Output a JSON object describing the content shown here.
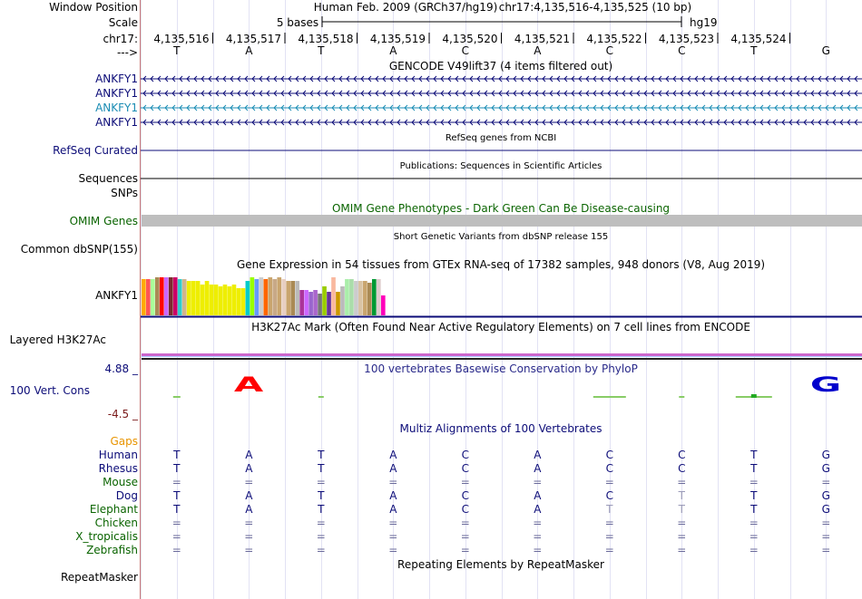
{
  "header": {
    "window_position_label": "Window Position",
    "assembly": "Human Feb. 2009 (GRCh37/hg19)",
    "position": "chr17:4,135,516-4,135,525 (10 bp)",
    "scale_label": "Scale",
    "scale_text": "5 bases",
    "scale_assembly": "hg19",
    "chrom_label": "chr17:",
    "strand_label": "--->",
    "coordinates": [
      "4,135,516",
      "4,135,517",
      "4,135,518",
      "4,135,519",
      "4,135,520",
      "4,135,521",
      "4,135,522",
      "4,135,523",
      "4,135,524"
    ],
    "bases": [
      "T",
      "A",
      "T",
      "A",
      "C",
      "A",
      "C",
      "C",
      "T",
      "G"
    ]
  },
  "gencode": {
    "title": "GENCODE V49lift37 (4 items filtered out)",
    "rows": [
      {
        "name": "ANKFY1",
        "color": "#0c0c78"
      },
      {
        "name": "ANKFY1",
        "color": "#0c0c78"
      },
      {
        "name": "ANKFY1",
        "color": "#1a8cb4"
      },
      {
        "name": "ANKFY1",
        "color": "#0c0c78"
      }
    ]
  },
  "refseq": {
    "title": "RefSeq genes from NCBI",
    "label": "RefSeq Curated",
    "color": "#0c0c78"
  },
  "publications": {
    "title": "Publications: Sequences in Scientific Articles",
    "label": "Sequences"
  },
  "snps": {
    "label": "SNPs"
  },
  "omim": {
    "title": "OMIM Gene Phenotypes - Dark Green Can Be Disease-causing",
    "label": "OMIM Genes",
    "color": "#0a6400",
    "bar_color": "#bebebe"
  },
  "dbsnp": {
    "title": "Short Genetic Variants from dbSNP release 155",
    "label": "Common dbSNP(155)"
  },
  "gtex": {
    "title": "Gene Expression in 54 tissues from GTEx RNA-seq of 17382 samples, 948 donors (V8, Aug 2019)",
    "label": "ANKFY1",
    "colors": [
      "#ffaa00",
      "#ff5555",
      "#aaff99",
      "#aa8a55",
      "#ff0000",
      "#cc66ff",
      "#7b2d2d",
      "#cc0066",
      "#33cccc",
      "#d2b48c",
      "#eeee00",
      "#eeee00",
      "#eeee00",
      "#eeee00",
      "#eeee00",
      "#eeee00",
      "#eeee00",
      "#eeee00",
      "#eeee00",
      "#eeee00",
      "#eeee00",
      "#eeee00",
      "#eeee00",
      "#00cccc",
      "#99ff00",
      "#6699ff",
      "#ccc",
      "#ff6600",
      "#c9a56e",
      "#c8a987",
      "#c9a56e",
      "#e8cfc2",
      "#c9a56e",
      "#aa8a55",
      "#bbbbbb",
      "#aa3399",
      "#cc66ff",
      "#9966cc",
      "#aa66cc",
      "#777777",
      "#99cc00",
      "#663399",
      "#f9b89f",
      "#cc9900",
      "#bbbbbb",
      "#aaeeaa",
      "#aaddaa",
      "#cccccc",
      "#d9c3a3",
      "#c9a56e",
      "#aa8a55",
      "#009933",
      "#ddcccc",
      "#ff00bb"
    ],
    "values": [
      40,
      40,
      40,
      42,
      42,
      42,
      42,
      42,
      40,
      40,
      38,
      38,
      38,
      34,
      38,
      34,
      34,
      32,
      34,
      32,
      34,
      30,
      30,
      38,
      42,
      40,
      42,
      40,
      42,
      40,
      42,
      40,
      38,
      38,
      38,
      28,
      28,
      26,
      28,
      24,
      32,
      26,
      42,
      26,
      32,
      40,
      40,
      38,
      38,
      38,
      36,
      40,
      40,
      22
    ]
  },
  "h3k27ac": {
    "title": "H3K27Ac Mark (Often Found Near Active Regulatory Elements) on 7 cell lines from ENCODE",
    "label": "Layered H3K27Ac"
  },
  "conservation": {
    "title": "100 vertebrates Basewise Conservation by PhyloP",
    "label": "100 Vert. Cons",
    "max": "4.88 _",
    "min": "-4.5 _",
    "big_letters": [
      {
        "base": "A",
        "color": "#ff0000"
      },
      {
        "base": "G",
        "color": "#0000cc"
      }
    ]
  },
  "multiz": {
    "title": "Multiz Alignments of 100 Vertebrates",
    "gaps_label": "Gaps",
    "species": [
      {
        "name": "Human",
        "color": "#0c0c78",
        "seq": [
          "T",
          "A",
          "T",
          "A",
          "C",
          "A",
          "C",
          "C",
          "T",
          "G"
        ]
      },
      {
        "name": "Rhesus",
        "color": "#0c0c78",
        "seq": [
          "T",
          "A",
          "T",
          "A",
          "C",
          "A",
          "C",
          "C",
          "T",
          "G"
        ]
      },
      {
        "name": "Mouse",
        "color": "#0a6400",
        "seq": [
          "=",
          "=",
          "=",
          "=",
          "=",
          "=",
          "=",
          "=",
          "=",
          "="
        ]
      },
      {
        "name": "Dog",
        "color": "#0c0c78",
        "seq": [
          "T",
          "A",
          "T",
          "A",
          "C",
          "A",
          "C",
          "T",
          "T",
          "G"
        ]
      },
      {
        "name": "Elephant",
        "color": "#0a6400",
        "seq": [
          "T",
          "A",
          "T",
          "A",
          "C",
          "A",
          "T",
          "T",
          "T",
          "G"
        ]
      },
      {
        "name": "Chicken",
        "color": "#0a6400",
        "seq": [
          "=",
          "=",
          "=",
          "=",
          "=",
          "=",
          "=",
          "=",
          "=",
          "="
        ]
      },
      {
        "name": "X_tropicalis",
        "color": "#0a6400",
        "seq": [
          "=",
          "=",
          "=",
          "=",
          "=",
          "=",
          "=",
          "=",
          "=",
          "="
        ]
      },
      {
        "name": "Zebrafish",
        "color": "#0a6400",
        "seq": [
          "=",
          "=",
          "=",
          "=",
          "=",
          "=",
          "=",
          "=",
          "=",
          "="
        ]
      }
    ]
  },
  "repeatmasker": {
    "title": "Repeating Elements by RepeatMasker",
    "label": "RepeatMasker"
  }
}
